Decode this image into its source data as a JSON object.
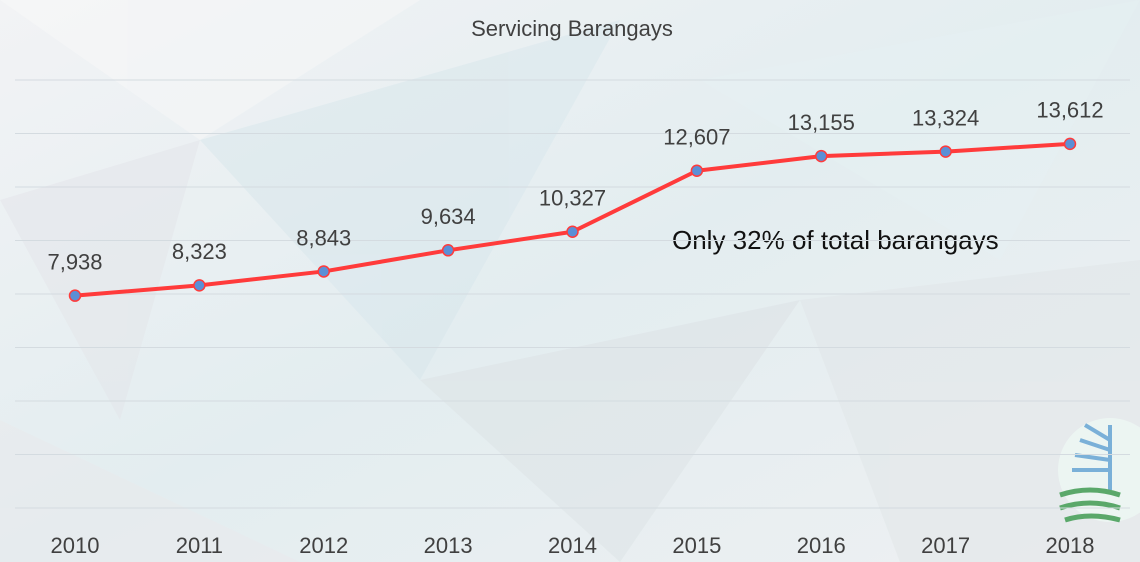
{
  "chart_data": {
    "type": "line",
    "title": "Servicing Barangays",
    "categories": [
      "2010",
      "2011",
      "2012",
      "2013",
      "2014",
      "2015",
      "2016",
      "2017",
      "2018"
    ],
    "series": [
      {
        "name": "Servicing Barangays",
        "color": "#ff3b3b",
        "marker_color": "#5b8fd6",
        "values": [
          7938,
          8323,
          8843,
          9634,
          10327,
          12607,
          13155,
          13324,
          13612
        ],
        "value_labels": [
          "7,938",
          "8,323",
          "8,843",
          "9,634",
          "10,327",
          "12,607",
          "13,155",
          "13,324",
          "13,612"
        ]
      }
    ],
    "ylim": [
      0,
      16000
    ],
    "yticks": [
      0,
      2000,
      4000,
      6000,
      8000,
      10000,
      12000,
      14000,
      16000
    ],
    "grid": true,
    "annotation": "Only 32% of total barangays"
  }
}
